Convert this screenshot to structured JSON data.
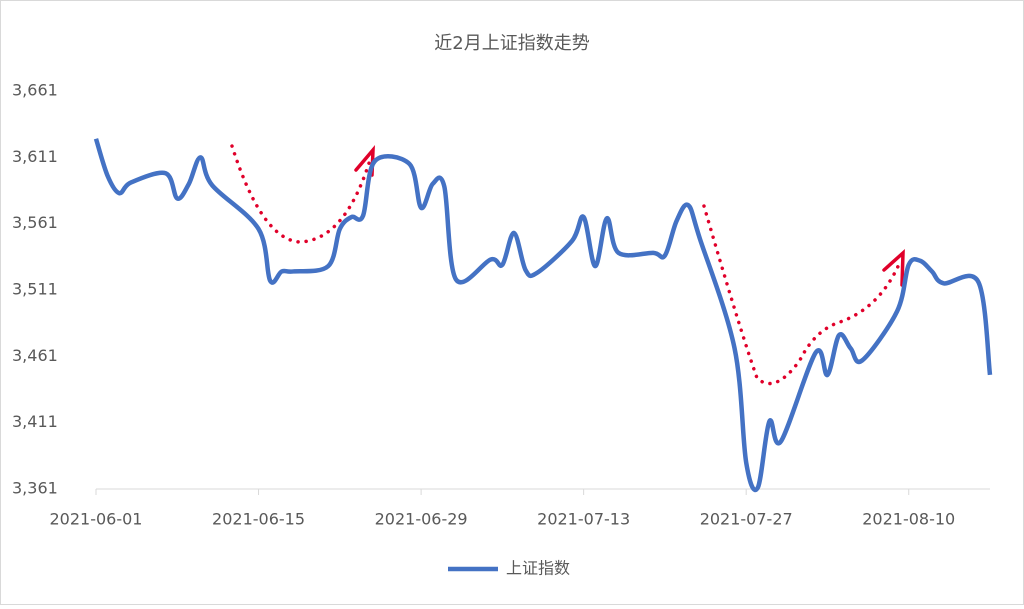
{
  "chart_data": {
    "type": "line",
    "title": "近2月上证指数走势",
    "x": [
      "2021-06-01",
      "2021-06-02",
      "2021-06-03",
      "2021-06-04",
      "2021-06-07",
      "2021-06-08",
      "2021-06-09",
      "2021-06-10",
      "2021-06-11",
      "2021-06-15",
      "2021-06-16",
      "2021-06-17",
      "2021-06-18",
      "2021-06-21",
      "2021-06-22",
      "2021-06-23",
      "2021-06-24",
      "2021-06-25",
      "2021-06-28",
      "2021-06-29",
      "2021-06-30",
      "2021-07-01",
      "2021-07-02",
      "2021-07-05",
      "2021-07-06",
      "2021-07-07",
      "2021-07-08",
      "2021-07-09",
      "2021-07-12",
      "2021-07-13",
      "2021-07-14",
      "2021-07-15",
      "2021-07-16",
      "2021-07-19",
      "2021-07-20",
      "2021-07-21",
      "2021-07-22",
      "2021-07-23",
      "2021-07-26",
      "2021-07-27",
      "2021-07-28",
      "2021-07-29",
      "2021-07-30",
      "2021-08-02",
      "2021-08-03",
      "2021-08-04",
      "2021-08-05",
      "2021-08-06",
      "2021-08-09",
      "2021-08-10",
      "2021-08-11",
      "2021-08-12",
      "2021-08-13",
      "2021-08-16",
      "2021-08-17"
    ],
    "series": [
      {
        "name": "上证指数",
        "color": "#4472c4",
        "values": [
          3625,
          3597,
          3584,
          3592,
          3599,
          3580,
          3591,
          3611,
          3590,
          3557,
          3518,
          3525,
          3525,
          3529,
          3557,
          3566,
          3567,
          3608,
          3606,
          3573,
          3591,
          3589,
          3519,
          3534,
          3530,
          3554,
          3526,
          3524,
          3548,
          3566,
          3529,
          3565,
          3539,
          3539,
          3537,
          3563,
          3575,
          3550,
          3467,
          3381,
          3362,
          3412,
          3397,
          3464,
          3447,
          3477,
          3467,
          3458,
          3495,
          3530,
          3533,
          3525,
          3516,
          3517,
          3447
        ]
      }
    ],
    "xlim": [
      "2021-06-01",
      "2021-08-17"
    ],
    "xticks": [
      "2021-06-01",
      "2021-06-15",
      "2021-06-29",
      "2021-07-13",
      "2021-07-27",
      "2021-08-10"
    ],
    "ylim": [
      3361,
      3661
    ],
    "yticks": [
      {
        "value": 3361,
        "label": "3,361"
      },
      {
        "value": 3411,
        "label": "3,411"
      },
      {
        "value": 3461,
        "label": "3,461"
      },
      {
        "value": 3511,
        "label": "3,511"
      },
      {
        "value": 3561,
        "label": "3,561"
      },
      {
        "value": 3611,
        "label": "3,611"
      },
      {
        "value": 3661,
        "label": "3,661"
      }
    ],
    "legend": "bottom"
  }
}
